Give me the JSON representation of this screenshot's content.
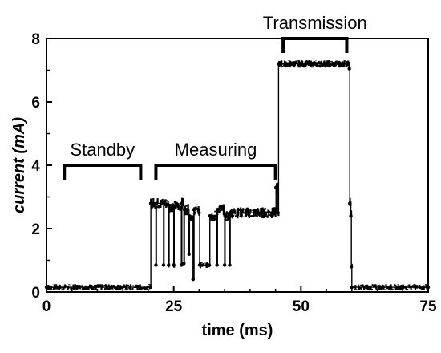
{
  "chart_data": {
    "type": "line",
    "title": "",
    "xlabel": "time (ms)",
    "ylabel": "current (mA)",
    "xlim": [
      0,
      75
    ],
    "ylim": [
      0,
      8
    ],
    "xticks": [
      0,
      25,
      50,
      75
    ],
    "yticks": [
      0,
      2,
      4,
      6,
      8
    ],
    "grid": false,
    "legend": "none",
    "line_color": "#000000",
    "series": [
      {
        "x": [
          0,
          20.4,
          20.5,
          21.5,
          21.6,
          23.0,
          23.1,
          24.0,
          24.1,
          25.0,
          25.1,
          26.5,
          26.6,
          27.0,
          27.1,
          28.0,
          28.1,
          28.8,
          29.0,
          30.0,
          30.1,
          32.0,
          32.1,
          33.5,
          33.6,
          35.0,
          35.1,
          36.0,
          36.1,
          45.0,
          45.1,
          45.5,
          45.6,
          46.0,
          59.5,
          59.6,
          59.8,
          59.9,
          60.0,
          75.0
        ],
        "y": [
          0.15,
          0.15,
          2.8,
          0.85,
          2.8,
          0.85,
          2.8,
          0.85,
          2.7,
          0.85,
          2.7,
          0.85,
          2.8,
          0.9,
          2.6,
          1.2,
          2.4,
          0.4,
          2.6,
          2.5,
          0.85,
          0.85,
          2.4,
          0.85,
          2.6,
          0.85,
          2.4,
          0.85,
          2.5,
          2.5,
          3.3,
          2.5,
          7.2,
          7.2,
          7.05,
          2.8,
          2.4,
          0.8,
          0.15,
          0.15
        ]
      }
    ],
    "annotations": [
      {
        "label": "Standby",
        "x_start": 3.5,
        "x_end": 18.5,
        "y_bracket": 4.0
      },
      {
        "label": "Measuring",
        "x_start": 21.5,
        "x_end": 45.0,
        "y_bracket": 4.0
      },
      {
        "label": "Transmission",
        "x_start": 46.5,
        "x_end": 59.0,
        "y_bracket": 8.0
      }
    ]
  }
}
